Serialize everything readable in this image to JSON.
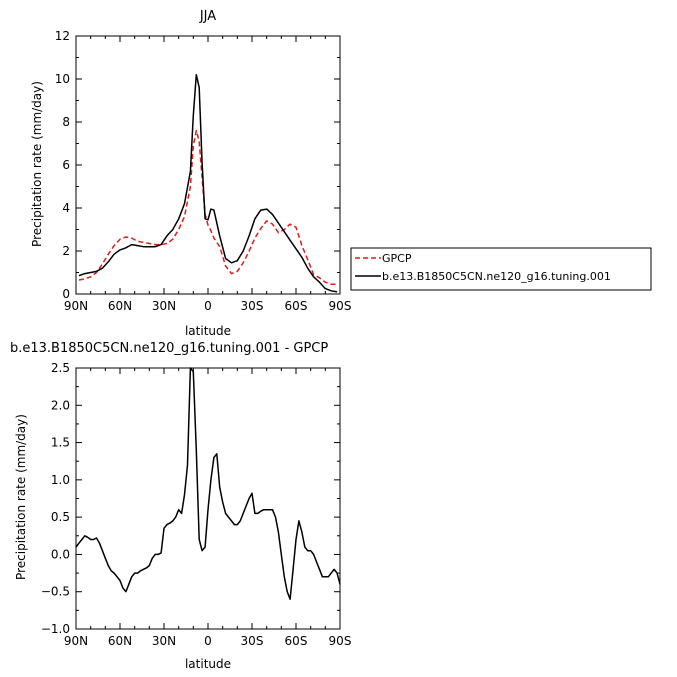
{
  "chart_data": [
    {
      "type": "line",
      "title": "JJA",
      "xlabel": "latitude",
      "ylabel": "Precipitation rate  (mm/day)",
      "xlim": [
        90,
        -90
      ],
      "ylim": [
        0,
        12
      ],
      "xticks": [
        90,
        60,
        30,
        0,
        -30,
        -60,
        -90
      ],
      "xtick_labels": [
        "90N",
        "60N",
        "30N",
        "0",
        "30S",
        "60S",
        "90S"
      ],
      "yticks": [
        0,
        2,
        4,
        6,
        8,
        10,
        12
      ],
      "ytick_labels": [
        "0",
        "2",
        "4",
        "6",
        "8",
        "10",
        "12"
      ],
      "legend_placement": "outside-right",
      "series": [
        {
          "name": "GPCP",
          "color": "#e31a1c",
          "dash": "dashed",
          "x": [
            88,
            84,
            80,
            76,
            72,
            68,
            64,
            60,
            56,
            52,
            48,
            44,
            40,
            36,
            32,
            28,
            24,
            20,
            16,
            12,
            10,
            8,
            6,
            4,
            2,
            0,
            -2,
            -4,
            -8,
            -12,
            -16,
            -20,
            -24,
            -28,
            -32,
            -36,
            -40,
            -44,
            -48,
            -52,
            -56,
            -60,
            -64,
            -68,
            -72,
            -76,
            -80,
            -84,
            -88
          ],
          "y": [
            0.65,
            0.7,
            0.8,
            1.0,
            1.4,
            1.85,
            2.25,
            2.55,
            2.65,
            2.6,
            2.45,
            2.4,
            2.35,
            2.3,
            2.3,
            2.35,
            2.55,
            3.0,
            3.6,
            5.0,
            6.9,
            7.6,
            7.1,
            5.4,
            3.7,
            3.2,
            2.95,
            2.6,
            2.2,
            1.3,
            0.95,
            1.05,
            1.45,
            2.0,
            2.6,
            3.05,
            3.4,
            3.25,
            2.85,
            3.0,
            3.25,
            3.1,
            2.25,
            1.6,
            0.9,
            0.75,
            0.55,
            0.45,
            0.45
          ]
        },
        {
          "name": "b.e13.B1850C5CN.ne120_g16.tuning.001",
          "color": "#000000",
          "dash": "solid",
          "x": [
            88,
            84,
            80,
            76,
            72,
            68,
            64,
            60,
            56,
            52,
            48,
            44,
            40,
            36,
            32,
            28,
            24,
            20,
            16,
            12,
            10,
            8,
            6,
            4,
            2,
            0,
            -2,
            -4,
            -8,
            -12,
            -16,
            -20,
            -24,
            -28,
            -32,
            -36,
            -40,
            -44,
            -48,
            -52,
            -56,
            -60,
            -64,
            -68,
            -72,
            -76,
            -80,
            -84,
            -88
          ],
          "y": [
            0.85,
            0.95,
            1.0,
            1.05,
            1.2,
            1.5,
            1.85,
            2.05,
            2.15,
            2.3,
            2.25,
            2.2,
            2.2,
            2.2,
            2.3,
            2.7,
            3.0,
            3.5,
            4.2,
            5.7,
            8.3,
            10.2,
            9.6,
            6.1,
            3.5,
            3.45,
            3.95,
            3.9,
            2.7,
            1.65,
            1.45,
            1.55,
            2.0,
            2.7,
            3.5,
            3.9,
            3.95,
            3.7,
            3.3,
            2.9,
            2.5,
            2.1,
            1.7,
            1.2,
            0.8,
            0.55,
            0.25,
            0.15,
            0.1
          ]
        }
      ]
    },
    {
      "type": "line",
      "title": "b.e13.B1850C5CN.ne120_g16.tuning.001  -  GPCP",
      "xlabel": "latitude",
      "ylabel": "Precipitation rate  (mm/day)",
      "xlim": [
        90,
        -90
      ],
      "ylim": [
        -1.0,
        2.5
      ],
      "xticks": [
        90,
        60,
        30,
        0,
        -30,
        -60,
        -90
      ],
      "xtick_labels": [
        "90N",
        "60N",
        "30N",
        "0",
        "30S",
        "60S",
        "90S"
      ],
      "yticks": [
        -1.0,
        -0.5,
        0.0,
        0.5,
        1.0,
        1.5,
        2.0,
        2.5
      ],
      "ytick_labels": [
        "−1.0",
        "−0.5",
        "0.0",
        "0.5",
        "1.0",
        "1.5",
        "2.0",
        "2.5"
      ],
      "series": [
        {
          "color": "#000000",
          "dash": "solid",
          "x": [
            90,
            88,
            86,
            84,
            82,
            80,
            78,
            76,
            74,
            72,
            70,
            68,
            66,
            64,
            62,
            60,
            58,
            56,
            54,
            52,
            50,
            48,
            46,
            44,
            42,
            40,
            38,
            36,
            34,
            32,
            30,
            28,
            26,
            24,
            22,
            20,
            18,
            16,
            14,
            12,
            10,
            8,
            6,
            4,
            2,
            0,
            -2,
            -4,
            -6,
            -8,
            -10,
            -12,
            -14,
            -16,
            -18,
            -20,
            -22,
            -24,
            -26,
            -28,
            -30,
            -32,
            -34,
            -36,
            -38,
            -40,
            -42,
            -44,
            -46,
            -48,
            -50,
            -52,
            -54,
            -56,
            -58,
            -60,
            -62,
            -64,
            -66,
            -68,
            -70,
            -72,
            -74,
            -76,
            -78,
            -80,
            -82,
            -84,
            -86,
            -88,
            -90
          ],
          "y": [
            0.1,
            0.15,
            0.2,
            0.25,
            0.23,
            0.2,
            0.2,
            0.22,
            0.15,
            0.05,
            -0.05,
            -0.15,
            -0.22,
            -0.25,
            -0.3,
            -0.35,
            -0.45,
            -0.5,
            -0.4,
            -0.3,
            -0.25,
            -0.25,
            -0.22,
            -0.2,
            -0.18,
            -0.15,
            -0.05,
            0.0,
            0.0,
            0.02,
            0.35,
            0.4,
            0.42,
            0.45,
            0.5,
            0.6,
            0.55,
            0.8,
            1.2,
            2.5,
            2.45,
            1.4,
            0.2,
            0.05,
            0.1,
            0.6,
            1.0,
            1.3,
            1.35,
            0.9,
            0.7,
            0.55,
            0.5,
            0.45,
            0.4,
            0.4,
            0.45,
            0.55,
            0.65,
            0.75,
            0.82,
            0.55,
            0.55,
            0.58,
            0.6,
            0.6,
            0.6,
            0.6,
            0.5,
            0.3,
            0.0,
            -0.3,
            -0.5,
            -0.6,
            -0.2,
            0.2,
            0.45,
            0.3,
            0.1,
            0.05,
            0.05,
            0.0,
            -0.1,
            -0.2,
            -0.3,
            -0.3,
            -0.3,
            -0.25,
            -0.2,
            -0.25,
            -0.4
          ]
        }
      ]
    }
  ]
}
